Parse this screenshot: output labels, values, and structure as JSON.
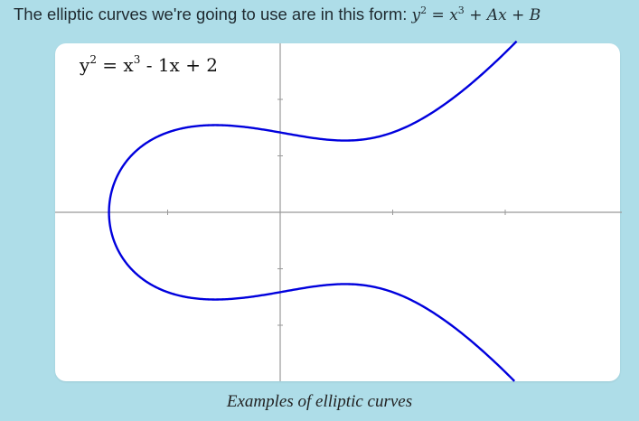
{
  "intro": {
    "prefix": "The elliptic curves we're going to use are in this form: ",
    "form_y": "y",
    "form_exp_y": "2",
    "form_eq": " = ",
    "form_x": "x",
    "form_exp_x": "3",
    "form_rest": " + Ax + B"
  },
  "plot": {
    "equation_y": "y",
    "equation_exp_y": "2",
    "equation_eq": " = x",
    "equation_exp_x": "3",
    "equation_rest": " - 1x + 2",
    "curve_color": "#0000dd",
    "axis_color": "#999999",
    "curve_params": {
      "A": -1,
      "B": 2
    }
  },
  "caption": "Examples of elliptic curves"
}
